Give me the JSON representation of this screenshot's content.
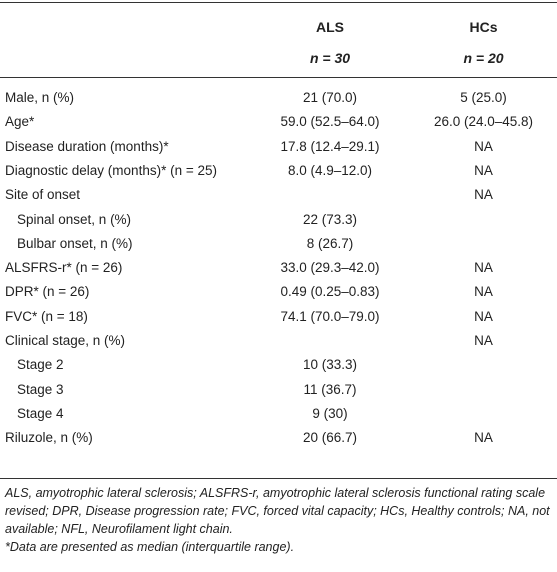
{
  "table": {
    "header": {
      "groups": [
        {
          "name": "ALS",
          "n": "n = 30"
        },
        {
          "name": "HCs",
          "n": "n = 20"
        }
      ]
    },
    "rows": [
      {
        "label": "Male, n (%)",
        "als": "21 (70.0)",
        "hcs": "5 (25.0)"
      },
      {
        "label": "Age*",
        "als": "59.0 (52.5–64.0)",
        "hcs": "26.0 (24.0–45.8)"
      },
      {
        "label": "Disease duration (months)*",
        "als": "17.8 (12.4–29.1)",
        "hcs": "NA"
      },
      {
        "label": "Diagnostic delay (months)* (n = 25)",
        "als": "8.0 (4.9–12.0)",
        "hcs": "NA"
      },
      {
        "label": "Site of onset",
        "hcs": "NA",
        "rows": [
          {
            "label": "Spinal onset, n (%)",
            "als": "22 (73.3)"
          },
          {
            "label": "Bulbar onset, n (%)",
            "als": "8 (26.7)"
          }
        ]
      },
      {
        "label": "ALSFRS-r* (n = 26)",
        "als": "33.0 (29.3–42.0)",
        "hcs": "NA"
      },
      {
        "label": "DPR* (n = 26)",
        "als": "0.49 (0.25–0.83)",
        "hcs": "NA"
      },
      {
        "label": "FVC* (n = 18)",
        "als": "74.1 (70.0–79.0)",
        "hcs": "NA"
      },
      {
        "label": "Clinical stage, n (%)",
        "hcs": "NA",
        "rows": [
          {
            "label": "Stage 2",
            "als": "10 (33.3)"
          },
          {
            "label": "Stage 3",
            "als": "11 (36.7)"
          },
          {
            "label": "Stage 4",
            "als": "9 (30)"
          }
        ]
      },
      {
        "label": "Riluzole, n (%)",
        "als": "20 (66.7)",
        "hcs": "NA"
      }
    ],
    "footnotes": [
      "ALS, amyotrophic lateral sclerosis; ALSFRS-r, amyotrophic lateral sclerosis functional rating scale revised; DPR, Disease progression rate; FVC, forced vital capacity; HCs, Healthy controls; NA, not available; NFL, Neurofilament light chain.",
      "*Data are presented as median (interquartile range)."
    ]
  }
}
